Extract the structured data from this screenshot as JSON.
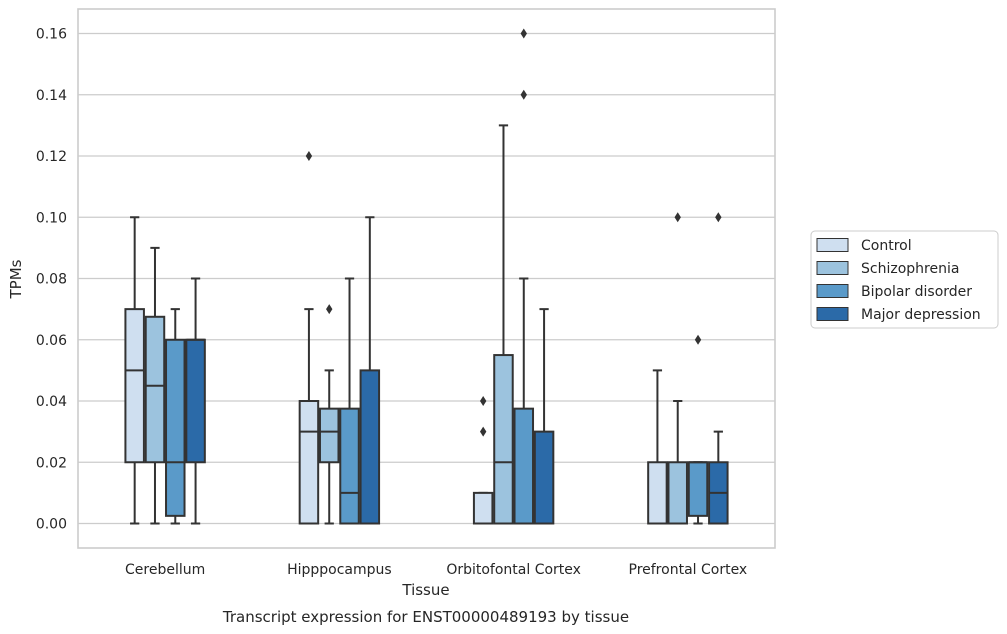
{
  "chart_data": {
    "type": "box",
    "title": "",
    "caption": "Transcript expression for ENST00000489193 by tissue",
    "xlabel": "Tissue",
    "ylabel": "TPMs",
    "ylim": [
      -0.008,
      0.168
    ],
    "yticks": [
      0.0,
      0.02,
      0.04,
      0.06,
      0.08,
      0.1,
      0.12,
      0.14,
      0.16
    ],
    "ytick_labels": [
      "0.00",
      "0.02",
      "0.04",
      "0.06",
      "0.08",
      "0.10",
      "0.12",
      "0.14",
      "0.16"
    ],
    "grid": "horizontal",
    "legend_position": "right",
    "categories": [
      "Cerebellum",
      "Hipppocampus",
      "Orbitofontal Cortex",
      "Prefrontal Cortex"
    ],
    "series": [
      {
        "name": "Control",
        "color": "#cfdff0",
        "boxes": [
          {
            "whislo": 0.0,
            "q1": 0.02,
            "med": 0.05,
            "q3": 0.07,
            "whishi": 0.1,
            "fliers": []
          },
          {
            "whislo": 0.0,
            "q1": 0.0,
            "med": 0.03,
            "q3": 0.04,
            "whishi": 0.07,
            "fliers": [
              0.12
            ]
          },
          {
            "whislo": 0.0,
            "q1": 0.0,
            "med": 0.0,
            "q3": 0.01,
            "whishi": 0.01,
            "fliers": [
              0.03,
              0.04
            ]
          },
          {
            "whislo": 0.0,
            "q1": 0.0,
            "med": 0.0,
            "q3": 0.02,
            "whishi": 0.05,
            "fliers": []
          }
        ]
      },
      {
        "name": "Schizophrenia",
        "color": "#9cc3de",
        "boxes": [
          {
            "whislo": 0.0,
            "q1": 0.02,
            "med": 0.045,
            "q3": 0.0675,
            "whishi": 0.09,
            "fliers": []
          },
          {
            "whislo": 0.0,
            "q1": 0.02,
            "med": 0.03,
            "q3": 0.0375,
            "whishi": 0.05,
            "fliers": [
              0.07
            ]
          },
          {
            "whislo": 0.0,
            "q1": 0.0,
            "med": 0.02,
            "q3": 0.055,
            "whishi": 0.13,
            "fliers": []
          },
          {
            "whislo": 0.0,
            "q1": 0.0,
            "med": 0.0,
            "q3": 0.02,
            "whishi": 0.04,
            "fliers": [
              0.1
            ]
          }
        ]
      },
      {
        "name": "Bipolar disorder",
        "color": "#5a9ac9",
        "boxes": [
          {
            "whislo": 0.0,
            "q1": 0.0025,
            "med": 0.02,
            "q3": 0.06,
            "whishi": 0.07,
            "fliers": []
          },
          {
            "whislo": 0.0,
            "q1": 0.0,
            "med": 0.01,
            "q3": 0.0375,
            "whishi": 0.08,
            "fliers": []
          },
          {
            "whislo": 0.0,
            "q1": 0.0,
            "med": 0.0,
            "q3": 0.0375,
            "whishi": 0.08,
            "fliers": [
              0.14,
              0.16
            ]
          },
          {
            "whislo": 0.0,
            "q1": 0.0025,
            "med": 0.02,
            "q3": 0.02,
            "whishi": 0.02,
            "fliers": [
              0.06
            ]
          }
        ]
      },
      {
        "name": "Major depression",
        "color": "#2b6aa8",
        "boxes": [
          {
            "whislo": 0.0,
            "q1": 0.02,
            "med": 0.06,
            "q3": 0.06,
            "whishi": 0.08,
            "fliers": []
          },
          {
            "whislo": 0.0,
            "q1": 0.0,
            "med": 0.0,
            "q3": 0.05,
            "whishi": 0.1,
            "fliers": []
          },
          {
            "whislo": 0.0,
            "q1": 0.0,
            "med": 0.0,
            "q3": 0.03,
            "whishi": 0.07,
            "fliers": []
          },
          {
            "whislo": 0.0,
            "q1": 0.0,
            "med": 0.01,
            "q3": 0.02,
            "whishi": 0.03,
            "fliers": [
              0.1
            ]
          }
        ]
      }
    ]
  }
}
